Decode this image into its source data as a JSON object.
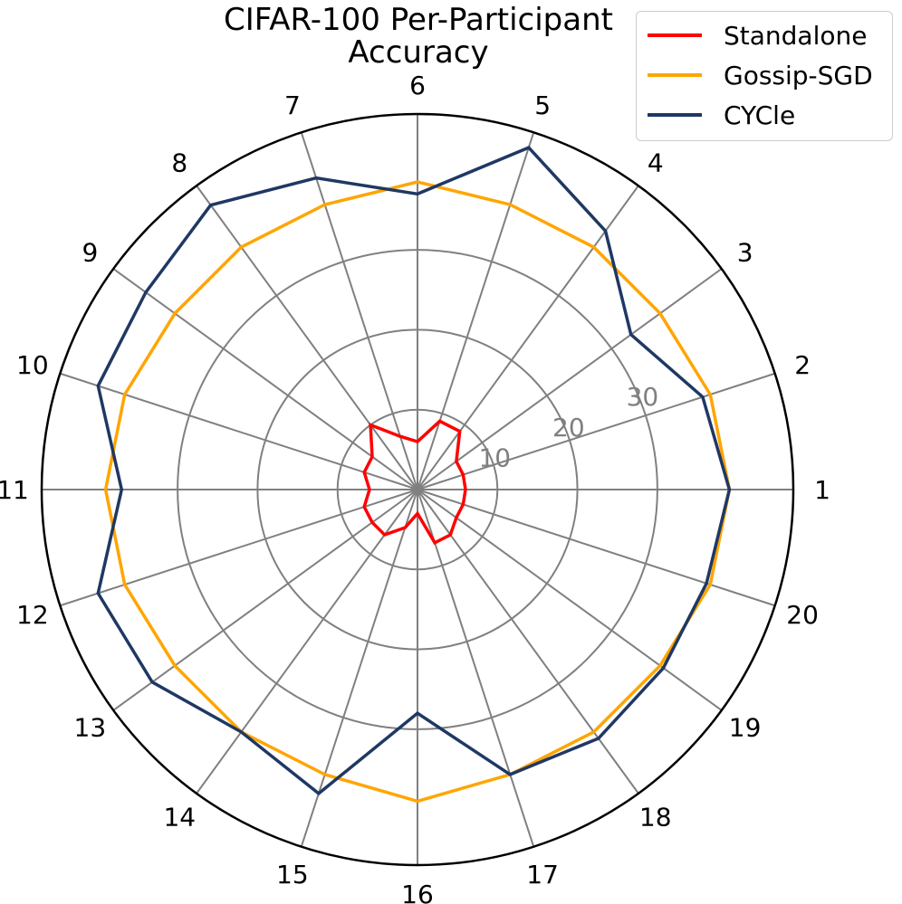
{
  "title_line1": "CIFAR-100 Per-Participant",
  "title_line2": "Accuracy",
  "chart_data": {
    "type": "radar",
    "title": "CIFAR-100 Per-Participant Accuracy",
    "categories": [
      "1",
      "2",
      "3",
      "4",
      "5",
      "6",
      "7",
      "8",
      "9",
      "10",
      "11",
      "12",
      "13",
      "14",
      "15",
      "16",
      "17",
      "18",
      "19",
      "20"
    ],
    "radial_ticks": [
      "10",
      "20",
      "30"
    ],
    "radial_tick_values": [
      10,
      20,
      30
    ],
    "rmax": 47,
    "grid": true,
    "legend_position": "top-right",
    "series": [
      {
        "name": "Standalone",
        "color": "#ff0000",
        "values": [
          6,
          6,
          6,
          9,
          9,
          6,
          7,
          10,
          7,
          7,
          6,
          7,
          7,
          7,
          5,
          3,
          7,
          7,
          6,
          6
        ]
      },
      {
        "name": "Gossip-SGD",
        "color": "#ffa500",
        "values": [
          39,
          38.5,
          37.5,
          37.5,
          37.5,
          38.5,
          37.5,
          37.5,
          37.5,
          38.5,
          39,
          38.5,
          37.5,
          37.5,
          37.5,
          39,
          37.5,
          37.5,
          37.5,
          38.5
        ]
      },
      {
        "name": "CYCle",
        "color": "#1f3864",
        "values": [
          39,
          37.5,
          33,
          40,
          45,
          37,
          41,
          44,
          42,
          42,
          37,
          42,
          41,
          37.5,
          40,
          28,
          37.5,
          38.5,
          38,
          38
        ]
      }
    ]
  }
}
